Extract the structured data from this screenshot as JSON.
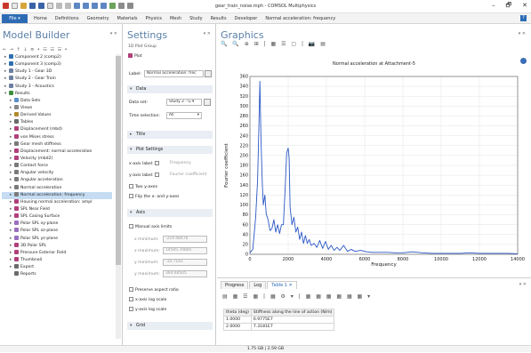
{
  "window": {
    "title": "gear_train_noise.mph - COMSOL Multiphysics",
    "min": "–",
    "max": "🗗",
    "close": "✕"
  },
  "menu": {
    "file": "File ▾",
    "items": [
      "Home",
      "Definitions",
      "Geometry",
      "Materials",
      "Physics",
      "Mesh",
      "Study",
      "Results",
      "Developer",
      "Normal acceleration: frequency"
    ],
    "help": "?"
  },
  "model_builder": {
    "title": "Model Builder",
    "toolbar": "← → ↑ ↓ ≡ • ☷ ☷ ☷ •",
    "tree": [
      {
        "label": "Component 2 (comp2)",
        "indent": 1,
        "arrow": "▸",
        "color": "#2f6fb0"
      },
      {
        "label": "Component 3 (comp3)",
        "indent": 1,
        "arrow": "▸",
        "color": "#2f6fb0"
      },
      {
        "label": "Study 1 - Gear 3D",
        "indent": 1,
        "arrow": "▸",
        "color": "#6c7fa0"
      },
      {
        "label": "Study 2 - Gear Train",
        "indent": 1,
        "arrow": "▸",
        "color": "#6c7fa0"
      },
      {
        "label": "Study 3 - Acoustics",
        "indent": 1,
        "arrow": "▸",
        "color": "#6c7fa0"
      },
      {
        "label": "Results",
        "indent": 1,
        "arrow": "▾",
        "color": "#3e8e3e"
      },
      {
        "label": "Data Sets",
        "indent": 2,
        "arrow": "▸",
        "color": "#5a8fc8"
      },
      {
        "label": "Views",
        "indent": 2,
        "arrow": "▸",
        "color": "#888"
      },
      {
        "label": "Derived Values",
        "indent": 2,
        "arrow": "▸",
        "color": "#b08a2e"
      },
      {
        "label": "Tables",
        "indent": 2,
        "arrow": "▸",
        "color": "#6b6b6b"
      },
      {
        "label": "Displacement (mbd)",
        "indent": 2,
        "arrow": "▸",
        "color": "#b0407a"
      },
      {
        "label": "von Mises stress",
        "indent": 2,
        "arrow": "▸",
        "color": "#b0407a"
      },
      {
        "label": "Gear mesh stiffness",
        "indent": 2,
        "arrow": "▸",
        "color": "#7a7a7a"
      },
      {
        "label": "Displacement: normal acceleration",
        "indent": 2,
        "arrow": "▸",
        "color": "#b0407a"
      },
      {
        "label": "Velocity (mbd2)",
        "indent": 2,
        "arrow": "▸",
        "color": "#b0407a"
      },
      {
        "label": "Contact force",
        "indent": 2,
        "arrow": "▸",
        "color": "#7a7a7a"
      },
      {
        "label": "Angular velocity",
        "indent": 2,
        "arrow": "▸",
        "color": "#7a7a7a"
      },
      {
        "label": "Angular acceleration",
        "indent": 2,
        "arrow": "▸",
        "color": "#7a7a7a"
      },
      {
        "label": "Normal acceleration",
        "indent": 2,
        "arrow": "▸",
        "color": "#7a7a7a"
      },
      {
        "label": "Normal acceleration: frequency",
        "indent": 2,
        "arrow": "▸",
        "color": "#7a7a7a",
        "selected": true
      },
      {
        "label": "Housing normal acceleration: ampl",
        "indent": 2,
        "arrow": "▸",
        "color": "#b0407a"
      },
      {
        "label": "SPL Near Field",
        "indent": 2,
        "arrow": "▸",
        "color": "#b0407a"
      },
      {
        "label": "SPL Casing Surface",
        "indent": 2,
        "arrow": "▸",
        "color": "#b0407a"
      },
      {
        "label": "Polar SPL xy-plane",
        "indent": 2,
        "arrow": "▸",
        "color": "#9a6fc0"
      },
      {
        "label": "Polar SPL xz-plane",
        "indent": 2,
        "arrow": "▸",
        "color": "#9a6fc0"
      },
      {
        "label": "Polar SPL yz-plane",
        "indent": 2,
        "arrow": "▸",
        "color": "#9a6fc0"
      },
      {
        "label": "3D Polar SPL",
        "indent": 2,
        "arrow": "▸",
        "color": "#b0407a"
      },
      {
        "label": "Pressure Exterior Field",
        "indent": 2,
        "arrow": "▸",
        "color": "#b0407a"
      },
      {
        "label": "Thumbnail",
        "indent": 2,
        "arrow": "▸",
        "color": "#b0407a"
      },
      {
        "label": "Export",
        "indent": 2,
        "arrow": "▸",
        "color": "#6b6b6b"
      },
      {
        "label": "Reports",
        "indent": 2,
        "arrow": "",
        "color": "#6b6b6b"
      }
    ]
  },
  "settings": {
    "title": "Settings",
    "subtitle": "1D Plot Group",
    "plot_button": "Plot",
    "label_caption": "Label:",
    "label_value": "Normal acceleration: frec",
    "data_section": "Data",
    "dataset_caption": "Data set:",
    "dataset_value": "Study 2 - G ▾",
    "time_caption": "Time selection:",
    "time_value": "All",
    "title_section": "Title",
    "plot_settings_section": "Plot Settings",
    "xaxis_caption": "x-axis label:",
    "xaxis_value": "Frequency",
    "yaxis_caption": "y-axis label:",
    "yaxis_value": "Fourier coefficient",
    "two_y": "Two y-axes",
    "flip": "Flip the x- and y-axes",
    "axis_section": "Axis",
    "manual_limits": "Manual axis limits",
    "xmin_caption": "x minimum:",
    "xmin_value": "-219.48476",
    "xmax_caption": "x maximum:",
    "xmax_value": "14505.70805",
    "ymin_caption": "y minimum:",
    "ymin_value": "-10.7141",
    "ymax_caption": "y maximum:",
    "ymax_value": "364.60505",
    "preserve": "Preserve aspect ratio",
    "xlog": "x-axis log scale",
    "ylog": "y-axis log scale",
    "grid_section": "Grid"
  },
  "graphics": {
    "title": "Graphics",
    "toolbar": "🔍 🔍 ⊕ ⊞ | ▦ ☰ ▢ | 📷 ▤"
  },
  "chart_data": {
    "type": "line",
    "title": "Normal acceleration at Attachment-5",
    "xlabel": "Frequency",
    "ylabel": "Fourier coefficient",
    "xlim": [
      0,
      14000
    ],
    "ylim": [
      0,
      360
    ],
    "x_ticks": [
      "0",
      "2000",
      "4000",
      "6000",
      "8000",
      "10000",
      "12000",
      "14000"
    ],
    "y_ticks": [
      "0",
      "20",
      "40",
      "60",
      "80",
      "100",
      "120",
      "140",
      "160",
      "180",
      "200",
      "220",
      "240",
      "260",
      "280",
      "300",
      "320",
      "340",
      "360"
    ],
    "grid": true,
    "color": "#2a57c6",
    "x": [
      0,
      150,
      300,
      400,
      470,
      520,
      580,
      650,
      700,
      780,
      850,
      950,
      1050,
      1150,
      1250,
      1350,
      1450,
      1550,
      1650,
      1750,
      1850,
      1920,
      2000,
      2050,
      2100,
      2200,
      2300,
      2400,
      2500,
      2600,
      2700,
      2800,
      2900,
      3000,
      3100,
      3200,
      3350,
      3500,
      3650,
      3800,
      3950,
      4100,
      4250,
      4400,
      4550,
      4700,
      4900,
      5100,
      5300,
      5500,
      5800,
      6100,
      6400,
      6800,
      7200,
      7600,
      8000,
      8500,
      9000,
      9500,
      10000,
      10500,
      11000,
      11500,
      12000,
      12500,
      13000,
      13500,
      14000
    ],
    "y": [
      3,
      10,
      75,
      150,
      260,
      350,
      230,
      140,
      100,
      120,
      82,
      70,
      48,
      52,
      70,
      45,
      60,
      42,
      60,
      60,
      140,
      205,
      215,
      195,
      95,
      60,
      75,
      45,
      55,
      30,
      45,
      22,
      38,
      22,
      30,
      18,
      22,
      14,
      28,
      12,
      26,
      10,
      18,
      8,
      14,
      8,
      18,
      6,
      10,
      6,
      8,
      5,
      4,
      4,
      4,
      3,
      3,
      5,
      3,
      2,
      2,
      2,
      2,
      3,
      2,
      2,
      2,
      2,
      1
    ]
  },
  "bottom": {
    "tabs": [
      "Progress",
      "Log",
      "Table 1 ✕"
    ],
    "toolbar": "▤ ▦ ☰ ▦ | ▦ ⚙ ▾ | ▦ ▦ ▦ ▦ ▦ ▦ ▾",
    "headers": [
      "theta (deg)",
      "Stiffness along the line of action (N/m)"
    ],
    "rows": [
      [
        "1.0000",
        "6.9775E7"
      ],
      [
        "2.0000",
        "7.3181E7"
      ]
    ]
  },
  "status": {
    "memory": "1.75 GB | 2.59 GB"
  }
}
